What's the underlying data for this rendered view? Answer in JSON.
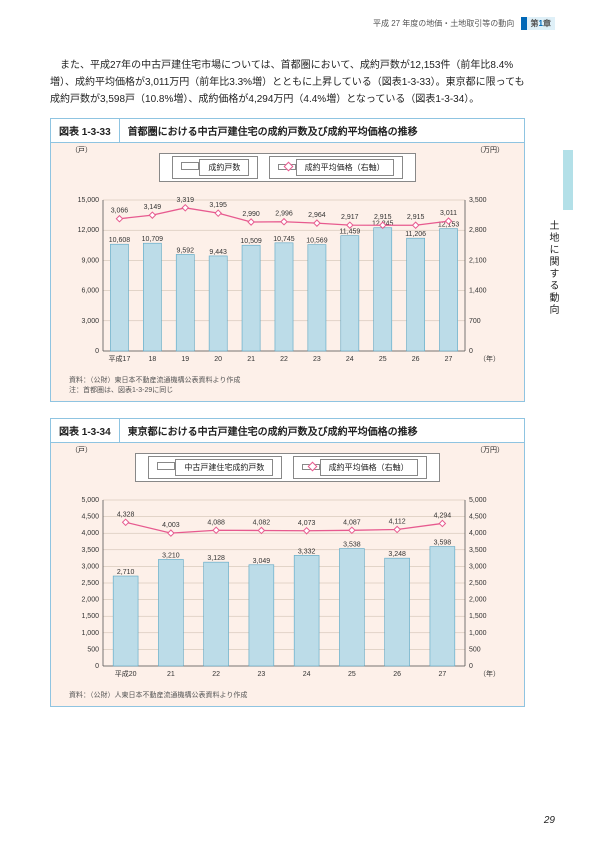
{
  "header": {
    "title": "平成 27 年度の地価・土地取引等の動向",
    "chapter_prefix": "第",
    "chapter_num": "1",
    "chapter_suffix": "章"
  },
  "side_label": "土地に関する動向",
  "paragraph": "また、平成27年の中古戸建住宅市場については、首都圏において、成約戸数が12,153件（前年比8.4%増）、成約平均価格が3,011万円（前年比3.3%増）とともに上昇している（図表1-3-33）。東京都に限っても成約戸数が3,598戸（10.8%増）、成約価格が4,294万円（4.4%増）となっている（図表1-3-34）。",
  "page_number": "29",
  "figA": {
    "num": "図表 1-3-33",
    "title": "首都圏における中古戸建住宅の成約戸数及び成約平均価格の推移",
    "unit_left": "（戸）",
    "unit_right": "（万円）",
    "x_suffix": "（年）",
    "legend_bar": "成約戸数",
    "legend_line": "成約平均価格（右軸）",
    "bar_color": "#bcdce8",
    "bar_stroke": "#5aa6c4",
    "line_color": "#e75a8f",
    "grid_color": "#c8b8a8",
    "bg": "#fdf0e9",
    "y_left_max": 15000,
    "y_left_step": 3000,
    "y_right_max": 3500,
    "y_right_min": 0,
    "y_right_step": 700,
    "x_start_label": "平成17",
    "x": [
      "17",
      "18",
      "19",
      "20",
      "21",
      "22",
      "23",
      "24",
      "25",
      "26",
      "27"
    ],
    "bars": [
      10608,
      10709,
      9592,
      9443,
      10509,
      10745,
      10569,
      11459,
      12245,
      11206,
      12153
    ],
    "lines": [
      3066,
      3149,
      3319,
      3195,
      2990,
      2996,
      2964,
      2917,
      2915,
      2915,
      3011
    ],
    "footnote1": "資料：（公財）東日本不動産流通機構公表資料より作成",
    "footnote2": "注：首都圏は、図表1-3-29に同じ"
  },
  "figB": {
    "num": "図表 1-3-34",
    "title": "東京都における中古戸建住宅の成約戸数及び成約平均価格の推移",
    "unit_left": "（戸）",
    "unit_right": "（万円）",
    "x_suffix": "（年）",
    "legend_bar": "中古戸建住宅成約戸数",
    "legend_line": "成約平均価格（右軸）",
    "bar_color": "#bcdce8",
    "bar_stroke": "#5aa6c4",
    "line_color": "#e75a8f",
    "grid_color": "#c8b8a8",
    "bg": "#fdf0e9",
    "y_left_max": 5000,
    "y_left_step": 500,
    "y_right_max": 5000,
    "y_right_min": 0,
    "y_right_step": 500,
    "x_start_label": "平成20",
    "x": [
      "20",
      "21",
      "22",
      "23",
      "24",
      "25",
      "26",
      "27"
    ],
    "bars": [
      2710,
      3210,
      3128,
      3049,
      3332,
      3538,
      3248,
      3598
    ],
    "lines": [
      4328,
      4003,
      4088,
      4082,
      4073,
      4087,
      4112,
      4294
    ],
    "footnote1": "資料：（公財）人東日本不動産流通機構公表資料より作成"
  }
}
